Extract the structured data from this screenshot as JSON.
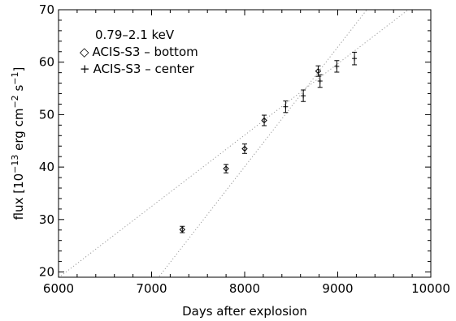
{
  "chart_data": {
    "type": "scatter",
    "xlabel": "Days after explosion",
    "ylabel_main": "flux [10",
    "ylabel_exp1": "−13",
    "ylabel_mid": " erg cm",
    "ylabel_exp2": "−2",
    "ylabel_mid2": " s",
    "ylabel_exp3": "−1",
    "ylabel_end": "]",
    "xlim": [
      6000,
      10000
    ],
    "ylim": [
      19,
      70
    ],
    "x_ticks": [
      6000,
      7000,
      8000,
      9000,
      10000
    ],
    "y_ticks": [
      20,
      30,
      40,
      50,
      60,
      70
    ],
    "legend": {
      "placement": "top-left",
      "title": "0.79–2.1 keV",
      "entries": [
        {
          "symbol": "diamond",
          "glyph": "◇",
          "label": "ACIS-S3 – bottom"
        },
        {
          "symbol": "plus",
          "glyph": "+",
          "label": "ACIS-S3 – center"
        }
      ]
    },
    "series": [
      {
        "name": "ACIS-S3 – bottom",
        "marker": "diamond",
        "points": [
          {
            "x": 7330,
            "y": 28.1,
            "err": 0.6
          },
          {
            "x": 7800,
            "y": 39.7,
            "err": 0.8
          },
          {
            "x": 8000,
            "y": 43.5,
            "err": 0.9
          },
          {
            "x": 8210,
            "y": 48.9,
            "err": 1.0
          },
          {
            "x": 8790,
            "y": 58.3,
            "err": 1.0
          }
        ]
      },
      {
        "name": "ACIS-S3 – center",
        "marker": "plus",
        "points": [
          {
            "x": 8440,
            "y": 51.5,
            "err": 1.1
          },
          {
            "x": 8630,
            "y": 53.6,
            "err": 1.1
          },
          {
            "x": 8810,
            "y": 56.4,
            "err": 1.2
          },
          {
            "x": 8990,
            "y": 59.2,
            "err": 1.1
          },
          {
            "x": 9180,
            "y": 60.7,
            "err": 1.2
          }
        ]
      }
    ],
    "fit_lines": [
      {
        "x": [
          6000,
          10000
        ],
        "y": [
          18.9,
          73.3
        ]
      },
      {
        "x": [
          6900,
          9400
        ],
        "y": [
          15.0,
          72.0
        ]
      }
    ]
  }
}
